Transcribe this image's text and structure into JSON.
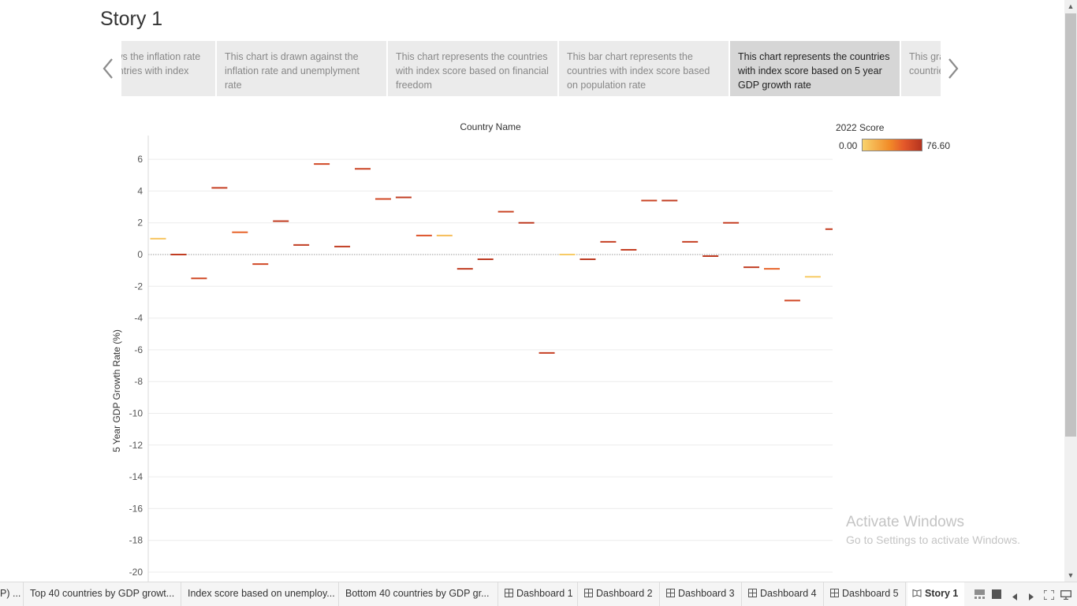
{
  "story": {
    "title": "Story 1"
  },
  "nav": {
    "prev_icon": "chevron-left-icon",
    "next_icon": "chevron-right-icon"
  },
  "panels": [
    {
      "text": "This chart shows the inflation rate in different countries with index score",
      "active": false
    },
    {
      "text": "This chart is drawn against the inflation rate and unemplyment rate",
      "active": false
    },
    {
      "text": "This chart represents the countries with index score based on financial freedom",
      "active": false
    },
    {
      "text": "This bar chart represents the countries with index score based on population rate",
      "active": false
    },
    {
      "text": "This chart represents the countries with index score based on 5 year GDP growth rate",
      "active": true
    },
    {
      "text": "This graph represents the countries",
      "active": false
    }
  ],
  "legend": {
    "title": "2022 Score",
    "min": "0.00",
    "max": "76.60",
    "colors": [
      "#f8d36e",
      "#f28c28",
      "#e4582a",
      "#b5331f"
    ]
  },
  "chart_data": {
    "type": "scatter",
    "mark": "dash",
    "title": "",
    "column_header": "Country Name",
    "xlabel": "",
    "ylabel": "5 Year GDP Growth Rate (%)",
    "ylim": [
      -20.3,
      7.3
    ],
    "yticks": [
      6,
      4,
      2,
      0,
      -2,
      -4,
      -6,
      -8,
      -10,
      -12,
      -14,
      -16,
      -18,
      -20
    ],
    "grid": true,
    "zero_line": "dotted",
    "color_by": "2022 Score",
    "points": [
      {
        "y": 1.0,
        "score": 5
      },
      {
        "y": 0.0,
        "score": 70
      },
      {
        "y": -1.5,
        "score": 62
      },
      {
        "y": 4.2,
        "score": 68
      },
      {
        "y": 1.4,
        "score": 45
      },
      {
        "y": -0.6,
        "score": 62
      },
      {
        "y": 2.1,
        "score": 70
      },
      {
        "y": 0.6,
        "score": 70
      },
      {
        "y": 5.7,
        "score": 62
      },
      {
        "y": 0.5,
        "score": 70
      },
      {
        "y": 5.4,
        "score": 65
      },
      {
        "y": 3.5,
        "score": 62
      },
      {
        "y": 3.6,
        "score": 70
      },
      {
        "y": 1.2,
        "score": 55
      },
      {
        "y": 1.2,
        "score": 8
      },
      {
        "y": -0.9,
        "score": 70
      },
      {
        "y": -0.3,
        "score": 72
      },
      {
        "y": 2.7,
        "score": 65
      },
      {
        "y": 2.0,
        "score": 72
      },
      {
        "y": -6.2,
        "score": 68
      },
      {
        "y": 0.0,
        "score": 3
      },
      {
        "y": -0.3,
        "score": 72
      },
      {
        "y": 0.8,
        "score": 68
      },
      {
        "y": 0.3,
        "score": 68
      },
      {
        "y": 3.4,
        "score": 65
      },
      {
        "y": 3.4,
        "score": 70
      },
      {
        "y": 0.8,
        "score": 68
      },
      {
        "y": -0.1,
        "score": 72
      },
      {
        "y": 2.0,
        "score": 68
      },
      {
        "y": -0.8,
        "score": 70
      },
      {
        "y": -0.9,
        "score": 45
      },
      {
        "y": -2.9,
        "score": 62
      },
      {
        "y": -1.4,
        "score": 3
      },
      {
        "y": 1.6,
        "score": 68
      }
    ]
  },
  "watermark": {
    "line1": "Activate Windows",
    "line2": "Go to Settings to activate Windows."
  },
  "tabs": [
    {
      "label": "P) ...",
      "type": "sheet"
    },
    {
      "label": "Top 40 countries by GDP growt...",
      "type": "sheet"
    },
    {
      "label": "Index score based on unemploy...",
      "type": "sheet"
    },
    {
      "label": "Bottom 40 countries by GDP gr...",
      "type": "sheet"
    },
    {
      "label": "Dashboard 1",
      "type": "dashboard"
    },
    {
      "label": "Dashboard 2",
      "type": "dashboard"
    },
    {
      "label": "Dashboard 3",
      "type": "dashboard"
    },
    {
      "label": "Dashboard 4",
      "type": "dashboard"
    },
    {
      "label": "Dashboard 5",
      "type": "dashboard"
    },
    {
      "label": "Story 1",
      "type": "story",
      "active": true
    }
  ],
  "controls": [
    "filmstrip-view-icon",
    "tabs-view-icon",
    "previous-sheet-icon",
    "next-sheet-icon",
    "fullscreen-icon",
    "presentation-icon"
  ]
}
